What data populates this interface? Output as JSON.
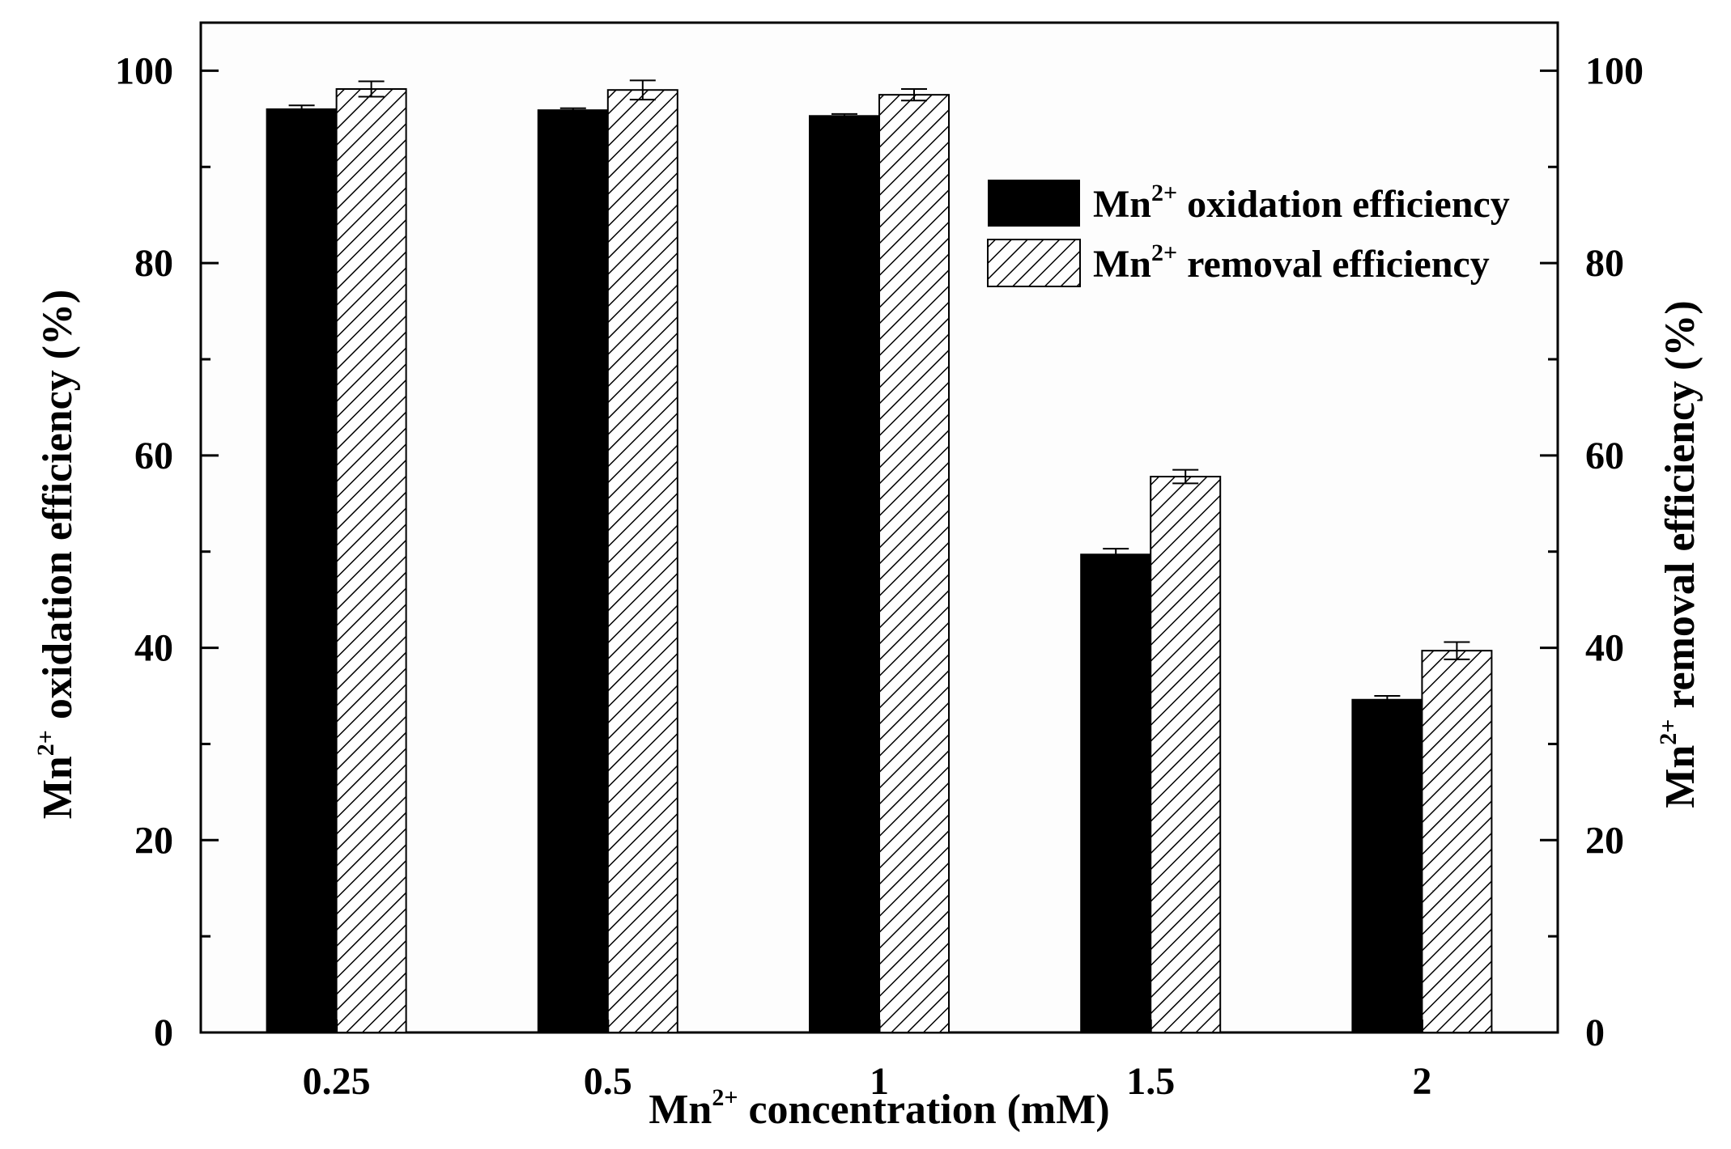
{
  "chart_data": {
    "type": "bar",
    "xlabel": {
      "base": "Mn",
      "sup": "2+",
      "rest": " concentration (mM)"
    },
    "ylabel_left": {
      "base": "Mn",
      "sup": "2+",
      "rest": " oxidation efficiency (%)"
    },
    "ylabel_right": {
      "base": "Mn",
      "sup": "2+",
      "rest": " removal efficiency (%)"
    },
    "categories": [
      "0.25",
      "0.5",
      "1",
      "1.5",
      "2"
    ],
    "ylim": [
      0,
      105
    ],
    "y_ticks": [
      0,
      20,
      40,
      60,
      80,
      100
    ],
    "y_tick_labels": [
      "0",
      "20",
      "40",
      "60",
      "80",
      "100"
    ],
    "grid": false,
    "legend_position": "top-right",
    "series": [
      {
        "name": {
          "base": "Mn",
          "sup": "2+",
          "rest": " oxidation efficiency"
        },
        "fill": "solid",
        "color": "#000000",
        "values": [
          96.0,
          95.9,
          95.3,
          49.7,
          34.6
        ],
        "errors": [
          0.4,
          0.2,
          0.2,
          0.6,
          0.4
        ]
      },
      {
        "name": {
          "base": "Mn",
          "sup": "2+",
          "rest": " removal efficiency"
        },
        "fill": "hatched",
        "color": "#000000",
        "values": [
          98.1,
          98.0,
          97.5,
          57.8,
          39.7
        ],
        "errors": [
          0.8,
          1.0,
          0.6,
          0.7,
          0.9
        ]
      }
    ]
  }
}
